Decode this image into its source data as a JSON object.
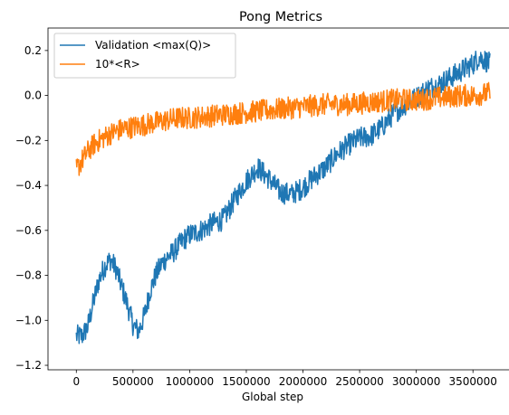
{
  "chart_data": {
    "type": "line",
    "title": "Pong Metrics",
    "xlabel": "Global step",
    "ylabel": "",
    "xlim": [
      -250000,
      3850000
    ],
    "ylim": [
      -1.22,
      0.3
    ],
    "x_ticks": [
      0,
      500000,
      1000000,
      1500000,
      2000000,
      2500000,
      3000000,
      3500000
    ],
    "x_tick_labels": [
      "0",
      "500000",
      "1000000",
      "1500000",
      "2000000",
      "2500000",
      "3000000",
      "3500000"
    ],
    "y_ticks": [
      -1.2,
      -1.0,
      -0.8,
      -0.6,
      -0.4,
      -0.2,
      0.0,
      0.2
    ],
    "y_tick_labels": [
      "−1.2",
      "−1.0",
      "−0.8",
      "−0.6",
      "−0.4",
      "−0.2",
      "0.0",
      "0.2"
    ],
    "grid": false,
    "legend_position": "top-left",
    "series": [
      {
        "name": "Validation <max(Q)>",
        "color": "#1f77b4",
        "noise": 0.05,
        "x": [
          0,
          50000,
          100000,
          150000,
          200000,
          250000,
          300000,
          350000,
          400000,
          450000,
          500000,
          550000,
          600000,
          650000,
          700000,
          750000,
          800000,
          850000,
          900000,
          950000,
          1000000,
          1100000,
          1200000,
          1300000,
          1400000,
          1500000,
          1600000,
          1700000,
          1800000,
          1900000,
          2000000,
          2100000,
          2200000,
          2300000,
          2400000,
          2500000,
          2600000,
          2700000,
          2800000,
          2900000,
          3000000,
          3100000,
          3200000,
          3300000,
          3400000,
          3500000,
          3550000,
          3600000,
          3650000
        ],
        "y": [
          -1.07,
          -1.07,
          -1.03,
          -0.92,
          -0.82,
          -0.76,
          -0.73,
          -0.77,
          -0.85,
          -0.93,
          -1.02,
          -1.05,
          -0.98,
          -0.87,
          -0.8,
          -0.75,
          -0.72,
          -0.7,
          -0.67,
          -0.64,
          -0.62,
          -0.6,
          -0.57,
          -0.55,
          -0.46,
          -0.38,
          -0.32,
          -0.37,
          -0.43,
          -0.44,
          -0.41,
          -0.36,
          -0.32,
          -0.26,
          -0.22,
          -0.19,
          -0.18,
          -0.14,
          -0.08,
          -0.04,
          -0.01,
          0.03,
          0.05,
          0.08,
          0.11,
          0.14,
          0.17,
          0.16,
          0.14
        ]
      },
      {
        "name": "10*<R>",
        "color": "#ff7f0e",
        "noise": 0.05,
        "x": [
          0,
          25000,
          50000,
          100000,
          150000,
          200000,
          300000,
          400000,
          500000,
          600000,
          700000,
          800000,
          900000,
          1000000,
          1200000,
          1400000,
          1600000,
          1800000,
          2000000,
          2200000,
          2400000,
          2600000,
          2800000,
          3000000,
          3200000,
          3400000,
          3500000,
          3650000
        ],
        "y": [
          -0.33,
          -0.31,
          -0.29,
          -0.25,
          -0.22,
          -0.2,
          -0.17,
          -0.15,
          -0.14,
          -0.13,
          -0.12,
          -0.11,
          -0.1,
          -0.1,
          -0.09,
          -0.08,
          -0.07,
          -0.06,
          -0.05,
          -0.04,
          -0.04,
          -0.03,
          -0.02,
          -0.02,
          -0.01,
          0.0,
          0.0,
          0.01
        ]
      }
    ]
  }
}
